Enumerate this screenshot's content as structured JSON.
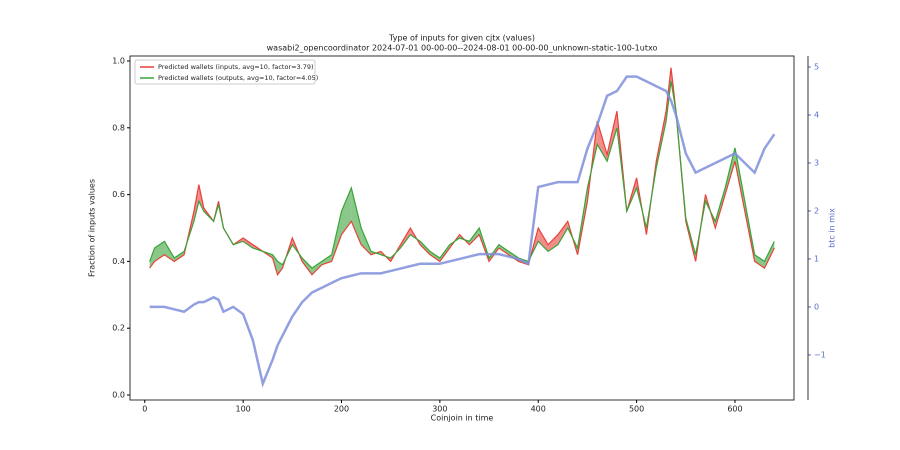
{
  "chart_data": {
    "type": "line",
    "title": "Type of inputs for given cjtx (values)",
    "subtitle": "wasabi2_opencoordinator 2024-07-01 00-00-00--2024-08-01 00-00-00_unknown-static-100-1utxo",
    "xlabel": "Coinjoin in time",
    "ylabel": "Fraction of inputs values",
    "y2label": "btc in mix",
    "xlim": [
      -15,
      660
    ],
    "xticks": [
      0,
      100,
      200,
      300,
      400,
      500,
      600
    ],
    "ylim": [
      -0.015,
      1.015
    ],
    "yticks": [
      {
        "value": 0,
        "label": "0.0"
      },
      {
        "value": 0.2,
        "label": "0.2"
      },
      {
        "value": 0.4,
        "label": "0.4"
      },
      {
        "value": 0.6,
        "label": "0.6"
      },
      {
        "value": 0.8,
        "label": "0.8"
      },
      {
        "value": 1,
        "label": "1.0"
      }
    ],
    "y2lim": [
      -1.94,
      5.23
    ],
    "y2ticks": [
      {
        "value": -1,
        "label": "−1"
      },
      0,
      1,
      2,
      3,
      4,
      5
    ],
    "legend": "upper left",
    "x": [
      5,
      10,
      20,
      30,
      40,
      50,
      55,
      60,
      70,
      75,
      80,
      90,
      100,
      110,
      120,
      130,
      135,
      140,
      150,
      160,
      170,
      180,
      190,
      200,
      210,
      220,
      230,
      240,
      250,
      260,
      270,
      280,
      290,
      300,
      310,
      320,
      330,
      340,
      350,
      360,
      370,
      380,
      390,
      400,
      410,
      420,
      430,
      440,
      450,
      460,
      470,
      480,
      490,
      500,
      510,
      520,
      530,
      535,
      540,
      550,
      560,
      570,
      580,
      590,
      600,
      610,
      620,
      630,
      640
    ],
    "series": [
      {
        "name": "Predicted wallets (inputs, avg=10, factor=3.79)",
        "color": "#e8413a",
        "values": [
          0.38,
          0.4,
          0.42,
          0.4,
          0.42,
          0.55,
          0.63,
          0.56,
          0.52,
          0.58,
          0.5,
          0.45,
          0.47,
          0.45,
          0.43,
          0.41,
          0.36,
          0.38,
          0.47,
          0.4,
          0.36,
          0.39,
          0.4,
          0.48,
          0.52,
          0.45,
          0.42,
          0.43,
          0.4,
          0.45,
          0.5,
          0.45,
          0.42,
          0.4,
          0.44,
          0.48,
          0.45,
          0.48,
          0.4,
          0.44,
          0.42,
          0.4,
          0.39,
          0.5,
          0.45,
          0.48,
          0.52,
          0.42,
          0.58,
          0.82,
          0.72,
          0.85,
          0.55,
          0.65,
          0.48,
          0.7,
          0.85,
          0.98,
          0.85,
          0.52,
          0.4,
          0.6,
          0.5,
          0.6,
          0.7,
          0.55,
          0.4,
          0.38,
          0.44
        ]
      },
      {
        "name": "Predicted wallets (outputs, avg=10, factor=4.05)",
        "color": "#3aa33a",
        "values": [
          0.4,
          0.44,
          0.46,
          0.41,
          0.43,
          0.52,
          0.58,
          0.55,
          0.52,
          0.57,
          0.5,
          0.45,
          0.46,
          0.44,
          0.43,
          0.42,
          0.4,
          0.39,
          0.45,
          0.41,
          0.38,
          0.4,
          0.42,
          0.55,
          0.62,
          0.5,
          0.43,
          0.42,
          0.41,
          0.44,
          0.48,
          0.46,
          0.43,
          0.41,
          0.45,
          0.47,
          0.46,
          0.5,
          0.41,
          0.45,
          0.43,
          0.41,
          0.4,
          0.46,
          0.43,
          0.45,
          0.5,
          0.44,
          0.62,
          0.75,
          0.7,
          0.8,
          0.55,
          0.62,
          0.5,
          0.68,
          0.82,
          0.94,
          0.85,
          0.53,
          0.42,
          0.58,
          0.52,
          0.62,
          0.74,
          0.58,
          0.42,
          0.4,
          0.46
        ]
      },
      {
        "name": "btc in mix",
        "color": "#7f8fdc",
        "axis": "y2",
        "values": [
          0,
          0,
          0,
          -0.05,
          -0.1,
          0.05,
          0.1,
          0.1,
          0.2,
          0.15,
          -0.1,
          0,
          -0.15,
          -0.7,
          -1.6,
          -1.1,
          -0.8,
          -0.6,
          -0.2,
          0.1,
          0.3,
          0.4,
          0.5,
          0.6,
          0.65,
          0.7,
          0.7,
          0.7,
          0.75,
          0.8,
          0.85,
          0.9,
          0.9,
          0.9,
          0.95,
          1.0,
          1.05,
          1.1,
          1.1,
          1.1,
          1.05,
          1.0,
          0.9,
          2.5,
          2.55,
          2.6,
          2.6,
          2.6,
          3.3,
          3.8,
          4.4,
          4.5,
          4.8,
          4.8,
          4.7,
          4.6,
          4.5,
          4.3,
          4.0,
          3.2,
          2.8,
          2.9,
          3.0,
          3.1,
          3.2,
          3.0,
          2.8,
          3.3,
          3.6
        ]
      }
    ]
  }
}
